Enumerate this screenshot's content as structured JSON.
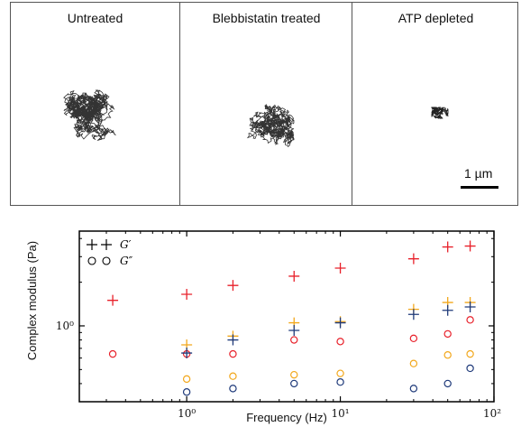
{
  "panels": [
    {
      "title": "Untreated"
    },
    {
      "title": "Blebbistatin treated"
    },
    {
      "title": "ATP depleted"
    }
  ],
  "scale_bar": {
    "label": "1 µm"
  },
  "chart_data": {
    "type": "scatter",
    "xlabel": "Frequency (Hz)",
    "ylabel": "Complex modulus (Pa)",
    "x_scale": "log",
    "y_scale": "log",
    "xlim": [
      0.2,
      100
    ],
    "ylim": [
      0.3,
      4.5
    ],
    "x_ticks": [
      1,
      10,
      100
    ],
    "x_tick_labels": [
      "10⁰",
      "10¹",
      "10²"
    ],
    "y_ticks": [
      1
    ],
    "y_tick_labels": [
      "10⁰"
    ],
    "legend": [
      {
        "label": "G′",
        "marker": "plus"
      },
      {
        "label": "G″",
        "marker": "circle"
      }
    ],
    "legend_position": "top-left",
    "series": [
      {
        "color": "#e8202a",
        "marker": "plus",
        "points": [
          [
            0.33,
            1.5
          ],
          [
            1,
            1.65
          ],
          [
            2,
            1.9
          ],
          [
            5,
            2.2
          ],
          [
            10,
            2.5
          ],
          [
            30,
            2.9
          ],
          [
            50,
            3.5
          ],
          [
            70,
            3.55
          ]
        ]
      },
      {
        "color": "#e8202a",
        "marker": "circle",
        "points": [
          [
            0.33,
            0.64
          ],
          [
            1,
            0.64
          ],
          [
            2,
            0.64
          ],
          [
            5,
            0.8
          ],
          [
            10,
            0.78
          ],
          [
            30,
            0.82
          ],
          [
            50,
            0.88
          ],
          [
            70,
            1.1
          ]
        ]
      },
      {
        "color": "#f2a71b",
        "marker": "plus",
        "points": [
          [
            1,
            0.74
          ],
          [
            2,
            0.85
          ],
          [
            5,
            1.05
          ],
          [
            10,
            1.07
          ],
          [
            30,
            1.3
          ],
          [
            50,
            1.45
          ],
          [
            70,
            1.45
          ]
        ]
      },
      {
        "color": "#f2a71b",
        "marker": "circle",
        "points": [
          [
            1,
            0.43
          ],
          [
            2,
            0.45
          ],
          [
            5,
            0.46
          ],
          [
            10,
            0.47
          ],
          [
            30,
            0.55
          ],
          [
            50,
            0.63
          ],
          [
            70,
            0.64
          ]
        ]
      },
      {
        "color": "#1f3a7a",
        "marker": "plus",
        "points": [
          [
            1,
            0.65
          ],
          [
            2,
            0.8
          ],
          [
            5,
            0.93
          ],
          [
            10,
            1.05
          ],
          [
            30,
            1.2
          ],
          [
            50,
            1.28
          ],
          [
            70,
            1.35
          ]
        ]
      },
      {
        "color": "#1f3a7a",
        "marker": "circle",
        "points": [
          [
            1,
            0.35
          ],
          [
            2,
            0.37
          ],
          [
            5,
            0.4
          ],
          [
            10,
            0.41
          ],
          [
            30,
            0.37
          ],
          [
            50,
            0.4
          ],
          [
            70,
            0.51
          ]
        ]
      }
    ]
  }
}
